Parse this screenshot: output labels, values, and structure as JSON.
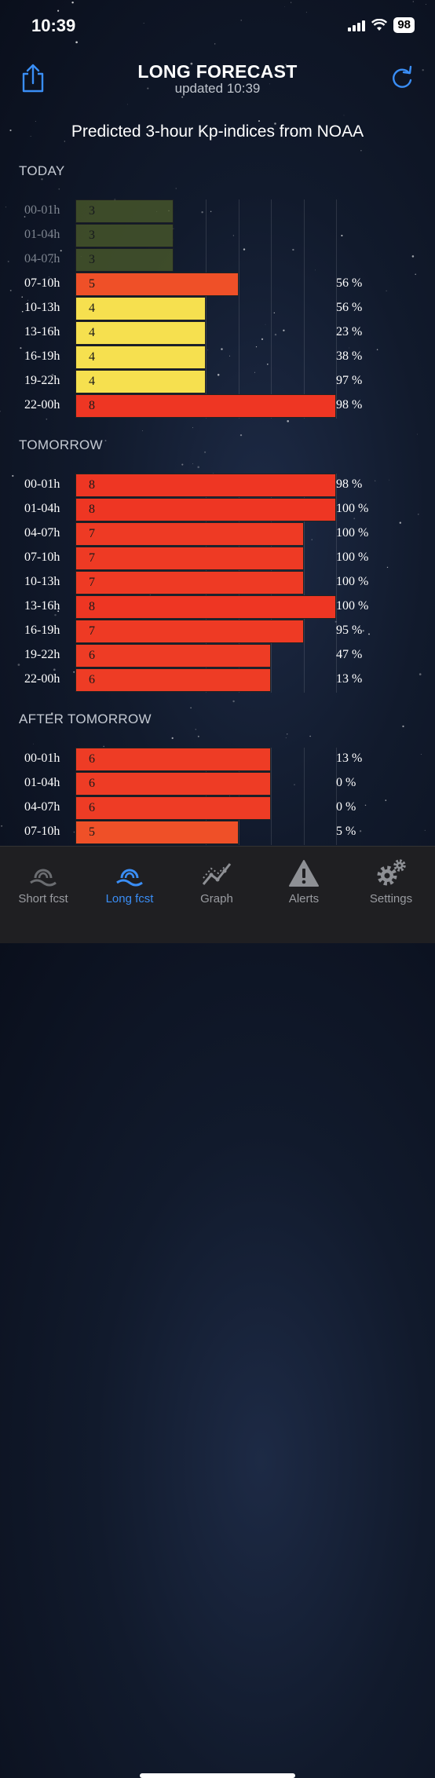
{
  "status": {
    "time": "10:39",
    "battery": "98"
  },
  "header": {
    "title": "LONG FORECAST",
    "updated_label": "updated  10:39"
  },
  "chart_title": "Predicted 3-hour Kp-indices from NOAA",
  "colors": {
    "kp3": "#4f5f2a",
    "kp4": "#f6e04f",
    "kp5": "#ef5028",
    "kp6": "#ee3c25",
    "kp7": "#ee3a24",
    "kp8": "#ee3623",
    "accent": "#3a8ef6"
  },
  "sections": [
    {
      "label": "TODAY",
      "rows": [
        {
          "time": "00-01h",
          "kp": "3",
          "pct": "",
          "past": true
        },
        {
          "time": "01-04h",
          "kp": "3",
          "pct": "",
          "past": true
        },
        {
          "time": "04-07h",
          "kp": "3",
          "pct": "",
          "past": true
        },
        {
          "time": "07-10h",
          "kp": "5",
          "pct": "56 %"
        },
        {
          "time": "10-13h",
          "kp": "4",
          "pct": "56 %"
        },
        {
          "time": "13-16h",
          "kp": "4",
          "pct": "23 %"
        },
        {
          "time": "16-19h",
          "kp": "4",
          "pct": "38 %"
        },
        {
          "time": "19-22h",
          "kp": "4",
          "pct": "97 %"
        },
        {
          "time": "22-00h",
          "kp": "8",
          "pct": "98 %"
        }
      ]
    },
    {
      "label": "TOMORROW",
      "rows": [
        {
          "time": "00-01h",
          "kp": "8",
          "pct": "98 %"
        },
        {
          "time": "01-04h",
          "kp": "8",
          "pct": "100 %"
        },
        {
          "time": "04-07h",
          "kp": "7",
          "pct": "100 %"
        },
        {
          "time": "07-10h",
          "kp": "7",
          "pct": "100 %"
        },
        {
          "time": "10-13h",
          "kp": "7",
          "pct": "100 %"
        },
        {
          "time": "13-16h",
          "kp": "8",
          "pct": "100 %"
        },
        {
          "time": "16-19h",
          "kp": "7",
          "pct": "95 %"
        },
        {
          "time": "19-22h",
          "kp": "6",
          "pct": "47 %"
        },
        {
          "time": "22-00h",
          "kp": "6",
          "pct": "13 %"
        }
      ]
    },
    {
      "label": "AFTER TOMORROW",
      "rows": [
        {
          "time": "00-01h",
          "kp": "6",
          "pct": "13 %"
        },
        {
          "time": "01-04h",
          "kp": "6",
          "pct": "0 %"
        },
        {
          "time": "04-07h",
          "kp": "6",
          "pct": "0 %"
        },
        {
          "time": "07-10h",
          "kp": "5",
          "pct": "5 %"
        }
      ]
    }
  ],
  "tabs": [
    {
      "label": "Short fcst",
      "icon": "aurora-icon",
      "active": false
    },
    {
      "label": "Long fcst",
      "icon": "aurora-icon",
      "active": true
    },
    {
      "label": "Graph",
      "icon": "graph-icon",
      "active": false
    },
    {
      "label": "Alerts",
      "icon": "alert-icon",
      "active": false
    },
    {
      "label": "Settings",
      "icon": "gear-icon",
      "active": false
    }
  ]
}
